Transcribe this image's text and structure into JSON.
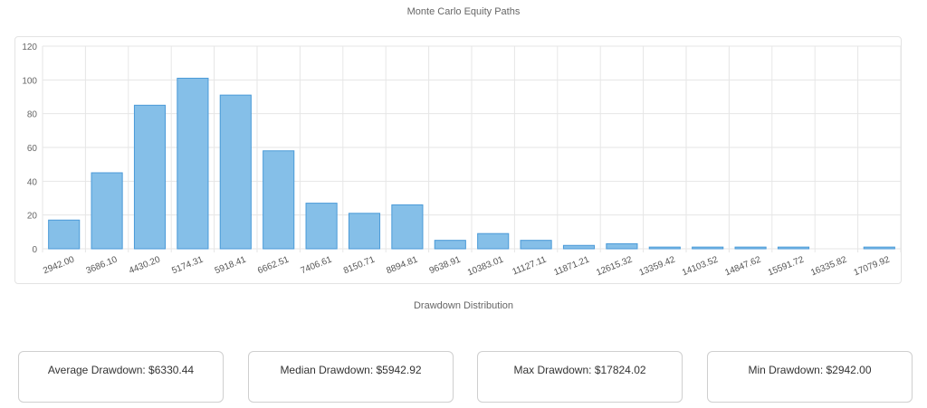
{
  "page": {
    "title": "Monte Carlo Equity Paths",
    "subtitle": "Drawdown Distribution"
  },
  "chart_data": {
    "type": "bar",
    "categories": [
      "2942.00",
      "3686.10",
      "4430.20",
      "5174.31",
      "5918.41",
      "6662.51",
      "7406.61",
      "8150.71",
      "8894.81",
      "9638.91",
      "10383.01",
      "11127.11",
      "11871.21",
      "12615.32",
      "13359.42",
      "14103.52",
      "14847.62",
      "15591.72",
      "16335.82",
      "17079.92"
    ],
    "values": [
      17,
      45,
      85,
      101,
      91,
      58,
      27,
      21,
      26,
      5,
      9,
      5,
      2,
      3,
      1,
      1,
      1,
      1,
      0,
      1
    ],
    "ylim": [
      0,
      120
    ],
    "yticks": [
      0,
      20,
      40,
      60,
      80,
      100,
      120
    ],
    "grid": true,
    "bar_color": "#85bfe8",
    "bar_border_color": "#4a9ad8",
    "grid_color": "#e6e6e6"
  },
  "stats": [
    {
      "label": "Average Drawdown: $6330.44"
    },
    {
      "label": "Median Drawdown: $5942.92"
    },
    {
      "label": "Max Drawdown: $17824.02"
    },
    {
      "label": "Min Drawdown: $2942.00"
    }
  ]
}
